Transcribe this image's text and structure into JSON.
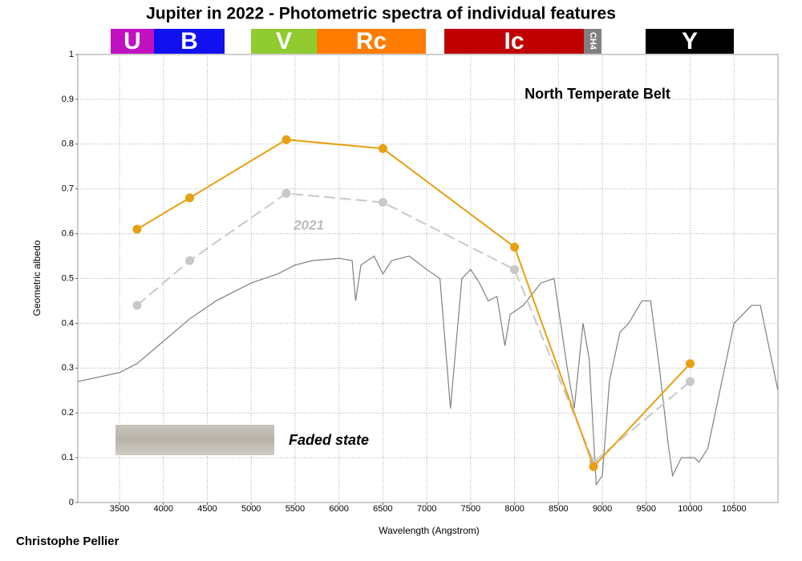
{
  "chart_data": {
    "type": "line",
    "title": "Jupiter in 2022 - Photometric spectra of individual features",
    "bands": [
      {
        "label": "U",
        "color": "#c010c0"
      },
      {
        "label": "B",
        "color": "#1010f0"
      },
      {
        "label": "V",
        "color": "#90cc30"
      },
      {
        "label": "Rc",
        "color": "#ff7c00"
      },
      {
        "label": "Ic",
        "color": "#c00000"
      },
      {
        "label": "CH4",
        "color": "#808080"
      },
      {
        "label": "Y",
        "color": "#000000"
      }
    ],
    "feature": "North Temperate Belt",
    "annotations": [
      "2021",
      "Faded state"
    ],
    "credit": "Christophe Pellier",
    "x_label": "Wavelength (Angstrom)",
    "y_label": "Geometric albedo",
    "xlim": [
      3025,
      11000
    ],
    "ylim": [
      0,
      1
    ],
    "xticks": [
      3500,
      4000,
      4500,
      5000,
      5500,
      6000,
      6500,
      7000,
      7500,
      8000,
      8500,
      9000,
      9500,
      10000,
      10500
    ],
    "yticks": [
      0,
      0.1,
      0.2,
      0.3,
      0.4,
      0.5,
      0.6,
      0.7,
      0.8,
      0.9,
      1
    ],
    "grid": true,
    "series": [
      {
        "color": "#808080",
        "linestyle": "solid",
        "marker": false,
        "x": [
          3025,
          3500,
          3700,
          4000,
          4300,
          4600,
          5000,
          5300,
          5500,
          5700,
          6000,
          6150,
          6190,
          6250,
          6400,
          6500,
          6600,
          6800,
          7000,
          7150,
          7270,
          7400,
          7500,
          7600,
          7700,
          7800,
          7890,
          7950,
          8100,
          8300,
          8450,
          8600,
          8680,
          8780,
          8850,
          8930,
          9000,
          9080,
          9200,
          9300,
          9450,
          9550,
          9650,
          9750,
          9800,
          9900,
          10050,
          10100,
          10200,
          10500,
          10700,
          10800,
          11000
        ],
        "values": [
          0.27,
          0.29,
          0.31,
          0.36,
          0.41,
          0.45,
          0.49,
          0.51,
          0.53,
          0.54,
          0.545,
          0.54,
          0.45,
          0.53,
          0.55,
          0.51,
          0.54,
          0.55,
          0.52,
          0.5,
          0.21,
          0.5,
          0.52,
          0.49,
          0.45,
          0.46,
          0.35,
          0.42,
          0.44,
          0.49,
          0.5,
          0.3,
          0.21,
          0.4,
          0.32,
          0.04,
          0.06,
          0.27,
          0.38,
          0.4,
          0.45,
          0.45,
          0.3,
          0.13,
          0.06,
          0.1,
          0.1,
          0.09,
          0.12,
          0.4,
          0.44,
          0.44,
          0.25
        ]
      },
      {
        "color": "#c8c8c8",
        "linestyle": "dashed",
        "marker": true,
        "x": [
          3700,
          4300,
          5400,
          6500,
          8000,
          8900,
          10000
        ],
        "values": [
          0.44,
          0.54,
          0.69,
          0.67,
          0.52,
          0.09,
          0.27
        ]
      },
      {
        "color": "#e8a010",
        "linestyle": "solid",
        "marker": true,
        "x": [
          3700,
          4300,
          5400,
          6500,
          8000,
          8900,
          10000
        ],
        "values": [
          0.61,
          0.68,
          0.81,
          0.79,
          0.57,
          0.08,
          0.31
        ]
      }
    ]
  }
}
